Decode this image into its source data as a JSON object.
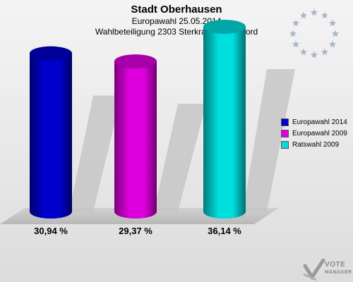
{
  "header": {
    "title": "Stadt Oberhausen",
    "subtitle1": "Europawahl 25.05.2014",
    "subtitle2": "Wahlbeteiligung 2303 Sterkrade-Mitte-Nord"
  },
  "chart_data": {
    "type": "bar",
    "categories": [
      "Europawahl 2014",
      "Europawahl 2009",
      "Ratswahl 2009"
    ],
    "values": [
      30.94,
      29.37,
      36.14
    ],
    "value_labels": [
      "30,94 %",
      "29,37 %",
      "36,14 %"
    ],
    "colors": [
      "#0000cc",
      "#dd00dd",
      "#00dddd"
    ],
    "ylim": [
      0,
      40
    ],
    "legend_placement": "right",
    "grid": false
  },
  "legend": {
    "items": [
      {
        "label": "Europawahl 2014",
        "color": "#0000cc"
      },
      {
        "label": "Europawahl 2009",
        "color": "#dd00dd"
      },
      {
        "label": "Ratswahl 2009",
        "color": "#00dddd"
      }
    ]
  },
  "logo": {
    "line1": "VOTE",
    "line2": "MANAGER",
    "icon": "checkmark-ballot-icon"
  },
  "decoration": {
    "emblem": "eu-stars-icon"
  }
}
